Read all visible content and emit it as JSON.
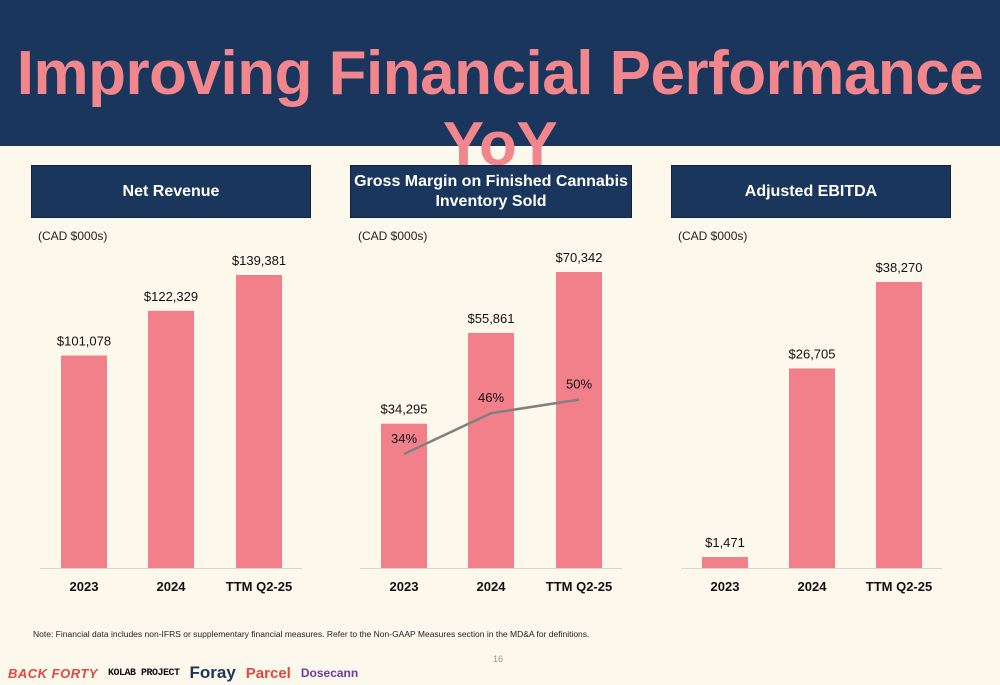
{
  "title": "Improving Financial Performance YoY",
  "colors": {
    "header_bg": "#1b365d",
    "title": "#f1868c",
    "bar": "#f2808b",
    "line": "#808080",
    "background": "#fcf8ec"
  },
  "chart_data": [
    {
      "type": "bar",
      "title": "Net Revenue",
      "unit_label": "(CAD $000s)",
      "categories": [
        "2023",
        "2024",
        "TTM Q2-25"
      ],
      "values": [
        101078,
        122329,
        139381
      ],
      "value_labels": [
        "$101,078",
        "$122,329",
        "$139,381"
      ]
    },
    {
      "type": "bar",
      "title": "Gross Margin on Finished Cannabis Inventory Sold",
      "unit_label": "(CAD $000s)",
      "categories": [
        "2023",
        "2024",
        "TTM Q2-25"
      ],
      "values": [
        34295,
        55861,
        70342
      ],
      "value_labels": [
        "$34,295",
        "$55,861",
        "$70,342"
      ],
      "line_series": {
        "values": [
          34,
          46,
          50
        ],
        "labels": [
          "34%",
          "46%",
          "50%"
        ]
      }
    },
    {
      "type": "bar",
      "title": "Adjusted EBITDA",
      "unit_label": "(CAD $000s)",
      "categories": [
        "2023",
        "2024",
        "TTM Q2-25"
      ],
      "values": [
        1471,
        26705,
        38270
      ],
      "value_labels": [
        "$1,471",
        "$26,705",
        "$38,270"
      ]
    }
  ],
  "note": "Note: Financial data includes non-IFRS or supplementary financial measures. Refer to the Non-GAAP Measures section in the MD&A for definitions.",
  "page_number": "16",
  "brands": [
    "BACK FORTY",
    "KOLAB PROJECT",
    "Foray",
    "Parcel",
    "Dosecann"
  ]
}
